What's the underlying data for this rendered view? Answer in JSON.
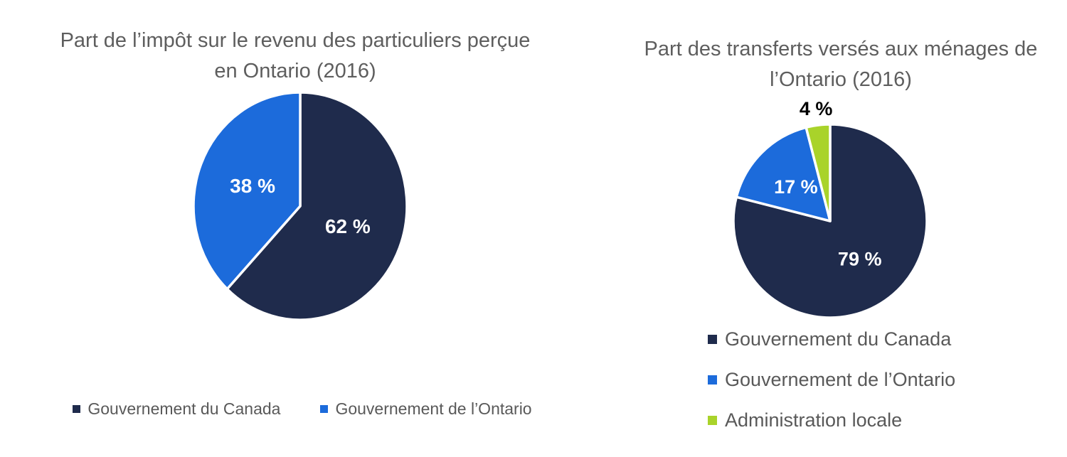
{
  "chart_data": [
    {
      "type": "pie",
      "title": "Part de l’impôt sur le revenu des particuliers perçue en Ontario (2016)",
      "labels": [
        "Gouvernement du Canada",
        "Gouvernement de l’Ontario"
      ],
      "values": [
        62,
        38
      ],
      "data_labels": [
        "62 %",
        "38 %"
      ],
      "colors": [
        "#1F2B4C",
        "#1C6BDB"
      ],
      "label_placements": [
        "inside",
        "inside"
      ],
      "label_colors": [
        "#FFFFFF",
        "#FFFFFF"
      ],
      "start_angle_deg": 0,
      "direction": "clockwise",
      "legend_position": "bottom",
      "legend_orientation": "horizontal",
      "title_color": "#5E5E5E",
      "legend_text_color": "#595959",
      "slice_border_color": "#FFFFFF"
    },
    {
      "type": "pie",
      "title": "Part des transferts versés aux ménages de l’Ontario (2016)",
      "labels": [
        "Gouvernement du Canada",
        "Gouvernement de l’Ontario",
        "Administration locale"
      ],
      "values": [
        79,
        17,
        4
      ],
      "data_labels": [
        "79 %",
        "17 %",
        "4 %"
      ],
      "colors": [
        "#1F2B4C",
        "#1C6BDB",
        "#A9D32A"
      ],
      "label_placements": [
        "inside",
        "inside",
        "outside"
      ],
      "label_colors": [
        "#FFFFFF",
        "#FFFFFF",
        "#000000"
      ],
      "start_angle_deg": 0,
      "direction": "clockwise",
      "legend_position": "bottom",
      "legend_orientation": "vertical",
      "title_color": "#5E5E5E",
      "legend_text_color": "#595959",
      "slice_border_color": "#FFFFFF"
    }
  ]
}
